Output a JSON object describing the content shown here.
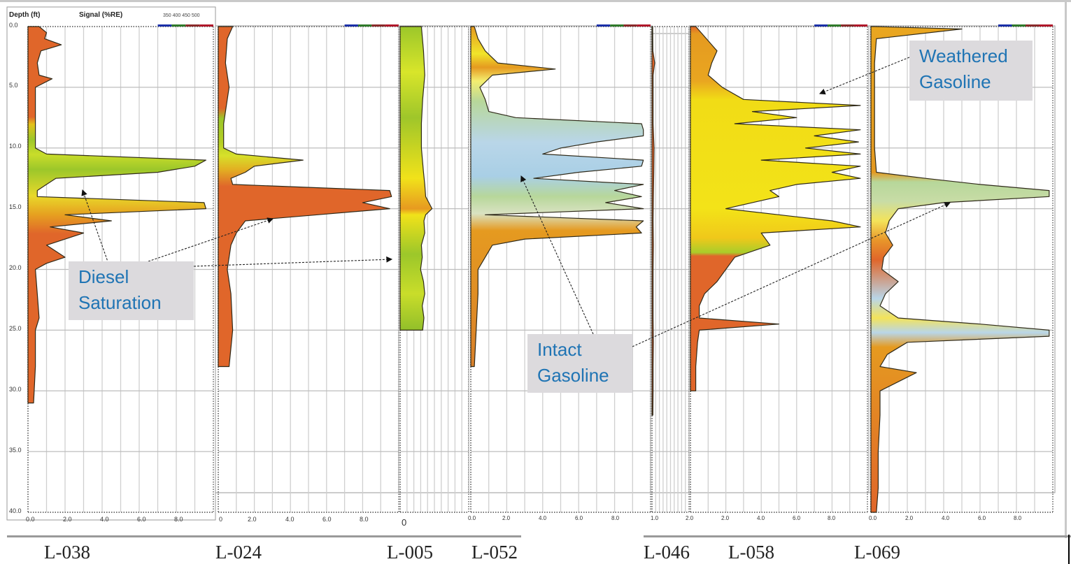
{
  "header": {
    "depth_label": "Depth (ft)",
    "signal_label": "Signal (%RE)",
    "wavelength_legend": "350 400 450 500",
    "wavelength_colors": [
      "#1a2fa8",
      "#2f7a2a",
      "#8a2a2a",
      "#b0172a"
    ]
  },
  "y_ticks": [
    "0.0",
    "5.0",
    "10.0",
    "15.0",
    "20.0",
    "25.0",
    "30.0",
    "35.0",
    "40.0"
  ],
  "x_ticks_full": [
    "0.0",
    "2.0",
    "4.0",
    "6.0",
    "8.0"
  ],
  "x_ticks_024": [
    "0",
    "2.0",
    "4.0",
    "6.0",
    "8.0"
  ],
  "x_tick_005": "0",
  "x_tick_046": "1.0",
  "x_ticks_058": [
    "2.0",
    "2.0",
    "4.0",
    "6.0",
    "8.0"
  ],
  "logs": [
    {
      "id": "L-038",
      "label": "L-038"
    },
    {
      "id": "L-024",
      "label": "L-024"
    },
    {
      "id": "L-005",
      "label": "L-005"
    },
    {
      "id": "L-052",
      "label": "L-052"
    },
    {
      "id": "L-046",
      "label": "L-046"
    },
    {
      "id": "L-058",
      "label": "L-058"
    },
    {
      "id": "L-069",
      "label": "L-069"
    }
  ],
  "callouts": {
    "diesel": {
      "line1": "Diesel",
      "line2": "Saturation"
    },
    "intact": {
      "line1": "Intact",
      "line2": "Gasoline"
    },
    "weathered": {
      "line1": "Weathered",
      "line2": "Gasoline"
    }
  },
  "colors": {
    "background_fluor": "#e0662a",
    "diesel": "#9cc72a",
    "weathered": "#f1dc16",
    "intact": "#b9d6e8",
    "mixed_green": "#b7d79a",
    "callout_bg": "#dcdadd",
    "callout_text": "#1f74b4"
  },
  "chart_data": {
    "type": "area",
    "title": "LIF (UVOST) logs — Signal (%RE) vs Depth (ft)",
    "xlabel": "Signal (%RE)",
    "ylabel": "Depth (ft)",
    "xlim": [
      0,
      10
    ],
    "ylim": [
      0,
      40
    ],
    "y_inverted": true,
    "grid": true,
    "legend": [
      "350",
      "400",
      "450",
      "500"
    ],
    "annotations": [
      "Diesel Saturation",
      "Intact Gasoline",
      "Weathered Gasoline"
    ],
    "series": [
      {
        "name": "L-038",
        "max_depth": 31.0,
        "fill": "diesel",
        "depth": [
          0,
          0.5,
          1,
          1.5,
          2,
          3,
          4,
          4.3,
          5,
          8,
          10,
          10.5,
          11,
          11.5,
          12,
          12.5,
          13,
          13.5,
          14,
          14.5,
          15,
          15.5,
          16,
          16.5,
          17,
          18,
          19,
          19.5,
          20,
          22,
          24,
          25,
          28,
          31
        ],
        "signal": [
          0.6,
          1.0,
          0.9,
          1.8,
          0.7,
          0.5,
          0.6,
          1.3,
          0.4,
          0.4,
          0.4,
          1.0,
          9.6,
          9.0,
          7.0,
          1.5,
          1.0,
          0.5,
          0.5,
          9.5,
          9.6,
          2.0,
          4.5,
          1.2,
          3.0,
          1.0,
          2.0,
          1.0,
          0.4,
          0.5,
          0.6,
          0.4,
          0.4,
          0.3
        ]
      },
      {
        "name": "L-024",
        "max_depth": 28.0,
        "fill": "diesel",
        "depth": [
          0,
          1,
          3,
          5,
          8,
          10,
          10.5,
          11,
          11.5,
          12,
          12.5,
          13,
          13.5,
          14,
          14.5,
          15,
          15.5,
          16,
          17,
          18,
          20,
          22,
          25,
          28
        ],
        "signal": [
          0.8,
          0.5,
          0.4,
          0.6,
          0.3,
          0.3,
          1.0,
          4.7,
          2.0,
          1.5,
          0.7,
          0.8,
          9.5,
          9.6,
          8.0,
          9.5,
          5.5,
          1.5,
          1.0,
          0.7,
          0.5,
          0.7,
          0.8,
          0.6
        ]
      },
      {
        "name": "L-005",
        "max_depth": 25.0,
        "fill": "diesel",
        "x_scale": "compressed",
        "depth": [
          0,
          2,
          4,
          6,
          8,
          10,
          12,
          13,
          14,
          15,
          15.5,
          16,
          17,
          18,
          19,
          20,
          21,
          22,
          23,
          24,
          25
        ],
        "signal": [
          5.0,
          5.5,
          5.8,
          5.3,
          5.0,
          5.0,
          5.5,
          5.8,
          6.0,
          7.5,
          6.0,
          5.6,
          5.8,
          5.0,
          5.2,
          4.8,
          5.5,
          5.8,
          5.2,
          5.6,
          5.3
        ]
      },
      {
        "name": "L-052",
        "max_depth": 28.0,
        "fill": "intact",
        "depth": [
          0,
          1,
          2,
          3,
          3.5,
          4,
          5,
          6,
          7,
          7.5,
          8,
          8.5,
          9,
          9.5,
          10,
          10.5,
          11,
          11.5,
          12,
          12.5,
          13,
          13.5,
          14,
          14.5,
          15,
          15.5,
          16,
          16.5,
          17,
          17.5,
          18,
          19,
          20,
          22,
          25,
          28
        ],
        "signal": [
          0.2,
          0.4,
          0.8,
          1.5,
          4.7,
          1.2,
          0.5,
          0.8,
          1.0,
          2.5,
          9.5,
          9.6,
          9.6,
          7.0,
          5.0,
          4.0,
          9.6,
          9.5,
          6.0,
          3.5,
          9.6,
          8.0,
          9.5,
          7.5,
          9.6,
          0.8,
          9.6,
          9.2,
          9.5,
          3.0,
          1.2,
          0.8,
          0.4,
          0.4,
          0.3,
          0.2
        ]
      },
      {
        "name": "L-046",
        "max_depth": 32.0,
        "fill": "background",
        "depth": [
          0,
          2,
          3,
          4,
          6,
          8,
          10,
          12,
          14,
          16,
          18,
          20,
          22,
          24,
          26,
          28,
          30,
          32
        ],
        "signal": [
          0.3,
          0.4,
          1.2,
          0.5,
          0.5,
          0.5,
          0.9,
          0.8,
          0.6,
          0.5,
          0.6,
          0.5,
          0.5,
          0.5,
          0.6,
          0.5,
          0.5,
          0.4
        ]
      },
      {
        "name": "L-058",
        "max_depth": 30.0,
        "fill": "weathered",
        "depth": [
          0,
          1,
          2,
          3,
          4,
          5,
          6,
          6.5,
          7,
          7.5,
          8,
          8.5,
          9,
          9.5,
          10,
          10.5,
          11,
          11.5,
          12,
          12.5,
          13,
          13.5,
          14,
          14.5,
          15,
          15.5,
          16,
          16.5,
          17,
          18,
          19,
          20,
          21,
          22,
          23,
          24,
          24.5,
          25,
          26,
          28,
          30
        ],
        "signal": [
          0.3,
          0.9,
          1.5,
          1.2,
          1.0,
          1.8,
          3.0,
          9.6,
          3.5,
          6.0,
          2.5,
          9.6,
          7.0,
          9.5,
          6.5,
          9.6,
          4.0,
          9.6,
          8.0,
          9.6,
          6.0,
          4.5,
          5.0,
          3.5,
          2.0,
          5.0,
          8.0,
          9.6,
          4.0,
          4.5,
          2.5,
          2.0,
          1.5,
          0.8,
          0.5,
          0.5,
          5.0,
          0.5,
          0.4,
          0.3,
          0.3
        ]
      },
      {
        "name": "L-069",
        "max_depth": 40.0,
        "fill": "mixed",
        "depth": [
          0,
          0.2,
          1,
          3,
          5,
          8,
          10,
          12,
          12.5,
          13,
          13.5,
          14,
          14.5,
          15,
          16,
          17,
          18,
          19,
          20,
          21,
          22,
          23,
          24,
          24.5,
          25,
          25.5,
          26,
          27,
          28,
          28.5,
          30,
          32,
          35,
          38,
          40
        ],
        "signal": [
          0.2,
          5.0,
          0.3,
          0.2,
          0.2,
          0.2,
          0.2,
          0.3,
          3.0,
          6.0,
          9.8,
          9.8,
          4.0,
          1.5,
          1.0,
          0.8,
          1.2,
          0.7,
          0.6,
          1.5,
          0.8,
          0.5,
          1.5,
          6.0,
          9.8,
          9.8,
          2.0,
          0.9,
          0.5,
          2.5,
          0.5,
          0.5,
          0.4,
          0.4,
          0.3
        ]
      }
    ]
  }
}
